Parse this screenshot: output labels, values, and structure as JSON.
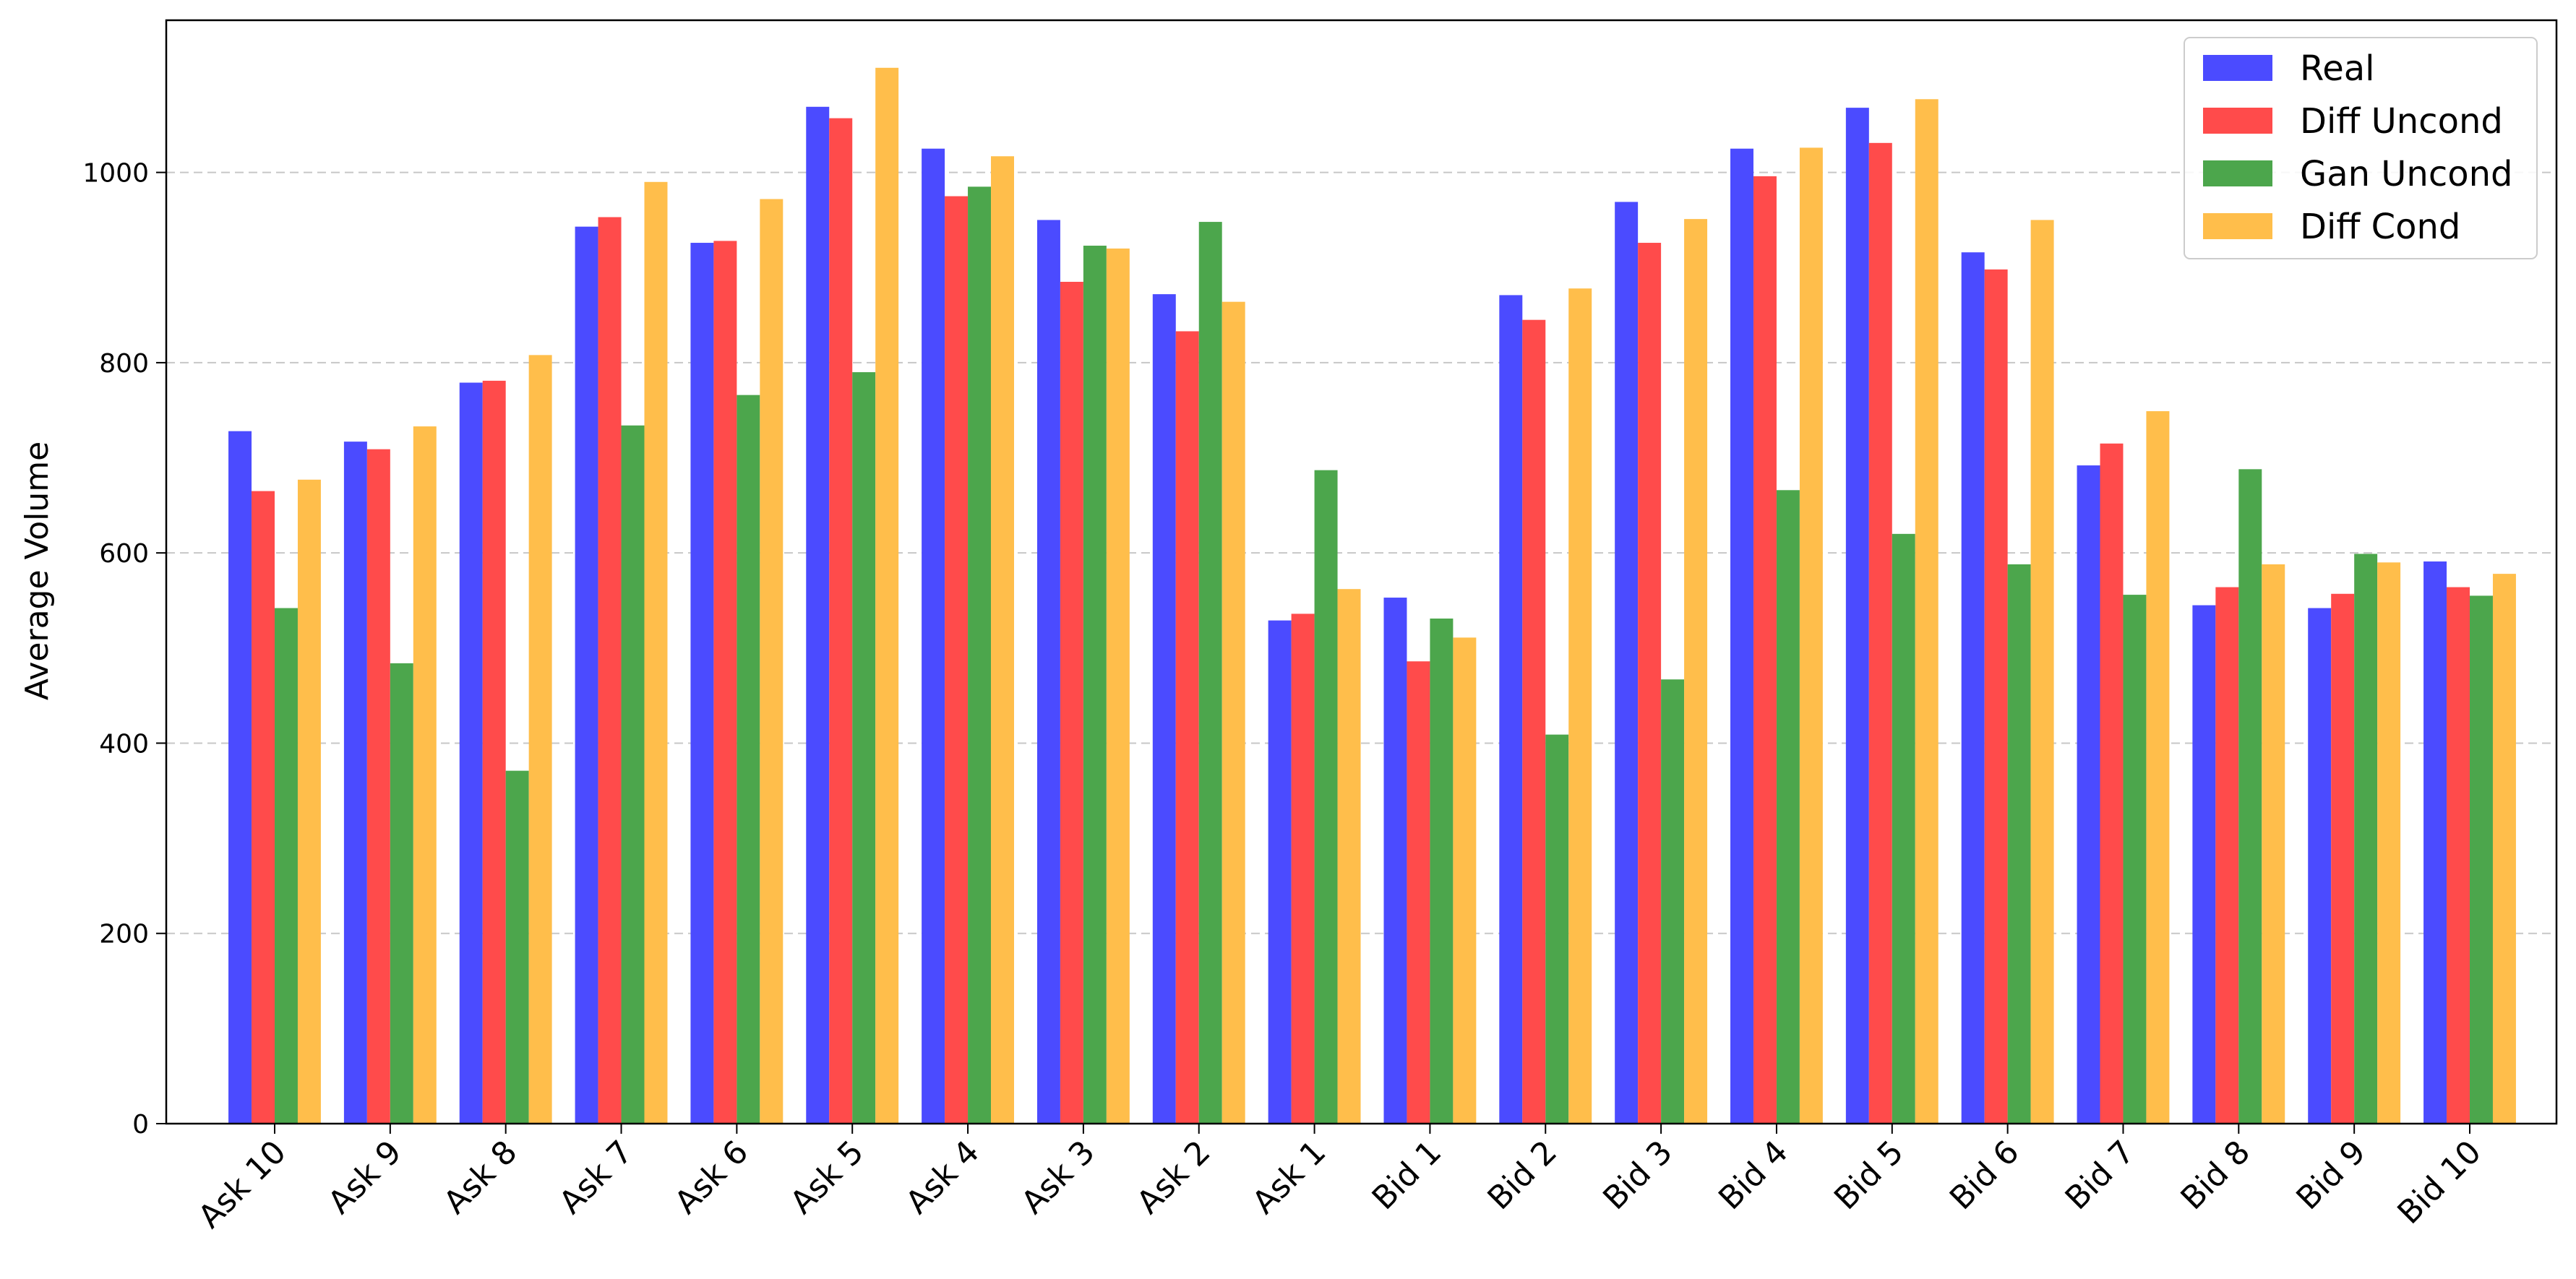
{
  "chart_data": {
    "type": "bar",
    "title": "",
    "xlabel": "",
    "ylabel": "Average Volume",
    "ylim": [
      0,
      1160
    ],
    "yticks": [
      0,
      200,
      400,
      600,
      800,
      1000
    ],
    "grid": "horizontal-dashed",
    "legend_position": "top-right",
    "categories": [
      "Ask 10",
      "Ask 9",
      "Ask 8",
      "Ask 7",
      "Ask 6",
      "Ask 5",
      "Ask 4",
      "Ask 3",
      "Ask 2",
      "Ask 1",
      "Bid 1",
      "Bid 2",
      "Bid 3",
      "Bid 4",
      "Bid 5",
      "Bid 6",
      "Bid 7",
      "Bid 8",
      "Bid 9",
      "Bid 10"
    ],
    "series": [
      {
        "name": "Real",
        "color": "#4b4bff",
        "values": [
          728,
          717,
          779,
          943,
          926,
          1069,
          1025,
          950,
          872,
          529,
          553,
          871,
          969,
          1025,
          1068,
          916,
          692,
          545,
          542,
          591
        ]
      },
      {
        "name": "Diff Uncond",
        "color": "#ff4b4b",
        "values": [
          665,
          709,
          781,
          953,
          928,
          1057,
          975,
          885,
          833,
          536,
          486,
          845,
          926,
          996,
          1031,
          898,
          715,
          564,
          557,
          564
        ]
      },
      {
        "name": "Gan Uncond",
        "color": "#4ca64c",
        "values": [
          542,
          484,
          371,
          734,
          766,
          790,
          985,
          923,
          948,
          687,
          531,
          409,
          467,
          666,
          620,
          588,
          556,
          688,
          599,
          555
        ]
      },
      {
        "name": "Diff Cond",
        "color": "#ffbe4b",
        "values": [
          677,
          733,
          808,
          990,
          972,
          1110,
          1017,
          920,
          864,
          562,
          511,
          878,
          951,
          1026,
          1077,
          950,
          749,
          588,
          590,
          578
        ]
      }
    ]
  }
}
